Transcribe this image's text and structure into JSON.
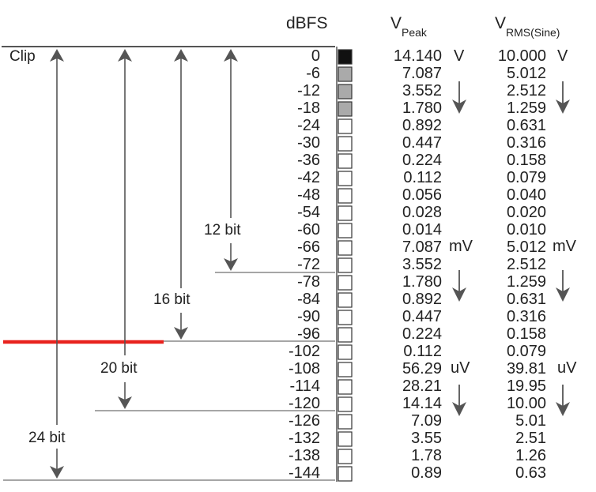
{
  "headers": {
    "dbfs": "dBFS",
    "vpeak_main": "V",
    "vpeak_sub": "Peak",
    "vrms_main": "V",
    "vrms_sub": "RMS(Sine)"
  },
  "labels": {
    "clip": "Clip",
    "bit12": "12 bit",
    "bit16": "16 bit",
    "bit20": "20 bit",
    "bit24": "24 bit"
  },
  "units": {
    "peak_v": "V",
    "rms_v": "V",
    "peak_mv": "mV",
    "rms_mv": "mV",
    "peak_uv": "uV",
    "rms_uv": "uV"
  },
  "colors": {
    "noise_floor_line": "#e8221e",
    "meter_top": "#111111",
    "meter_hatched": "#aaaaaa",
    "meter_empty": "#ffffff"
  },
  "rows": [
    {
      "dbfs": "0",
      "vpeak": "14.140",
      "vrms": "10.000",
      "meter": "solid"
    },
    {
      "dbfs": "-6",
      "vpeak": "7.087",
      "vrms": "5.012",
      "meter": "hatched"
    },
    {
      "dbfs": "-12",
      "vpeak": "3.552",
      "vrms": "2.512",
      "meter": "hatched"
    },
    {
      "dbfs": "-18",
      "vpeak": "1.780",
      "vrms": "1.259",
      "meter": "hatched"
    },
    {
      "dbfs": "-24",
      "vpeak": "0.892",
      "vrms": "0.631",
      "meter": "empty"
    },
    {
      "dbfs": "-30",
      "vpeak": "0.447",
      "vrms": "0.316",
      "meter": "empty"
    },
    {
      "dbfs": "-36",
      "vpeak": "0.224",
      "vrms": "0.158",
      "meter": "empty"
    },
    {
      "dbfs": "-42",
      "vpeak": "0.112",
      "vrms": "0.079",
      "meter": "empty"
    },
    {
      "dbfs": "-48",
      "vpeak": "0.056",
      "vrms": "0.040",
      "meter": "empty"
    },
    {
      "dbfs": "-54",
      "vpeak": "0.028",
      "vrms": "0.020",
      "meter": "empty"
    },
    {
      "dbfs": "-60",
      "vpeak": "0.014",
      "vrms": "0.010",
      "meter": "empty"
    },
    {
      "dbfs": "-66",
      "vpeak": "7.087",
      "vrms": "5.012",
      "meter": "empty"
    },
    {
      "dbfs": "-72",
      "vpeak": "3.552",
      "vrms": "2.512",
      "meter": "empty"
    },
    {
      "dbfs": "-78",
      "vpeak": "1.780",
      "vrms": "1.259",
      "meter": "empty"
    },
    {
      "dbfs": "-84",
      "vpeak": "0.892",
      "vrms": "0.631",
      "meter": "empty"
    },
    {
      "dbfs": "-90",
      "vpeak": "0.447",
      "vrms": "0.316",
      "meter": "empty"
    },
    {
      "dbfs": "-96",
      "vpeak": "0.224",
      "vrms": "0.158",
      "meter": "empty"
    },
    {
      "dbfs": "-102",
      "vpeak": "0.112",
      "vrms": "0.079",
      "meter": "empty"
    },
    {
      "dbfs": "-108",
      "vpeak": "56.29",
      "vrms": "39.81",
      "meter": "empty"
    },
    {
      "dbfs": "-114",
      "vpeak": "28.21",
      "vrms": "19.95",
      "meter": "empty"
    },
    {
      "dbfs": "-120",
      "vpeak": "14.14",
      "vrms": "10.00",
      "meter": "empty"
    },
    {
      "dbfs": "-126",
      "vpeak": "7.09",
      "vrms": "5.01",
      "meter": "empty"
    },
    {
      "dbfs": "-132",
      "vpeak": "3.55",
      "vrms": "2.51",
      "meter": "empty"
    },
    {
      "dbfs": "-138",
      "vpeak": "1.78",
      "vrms": "1.26",
      "meter": "empty"
    },
    {
      "dbfs": "-144",
      "vpeak": "0.89",
      "vrms": "0.63",
      "meter": "empty"
    }
  ]
}
